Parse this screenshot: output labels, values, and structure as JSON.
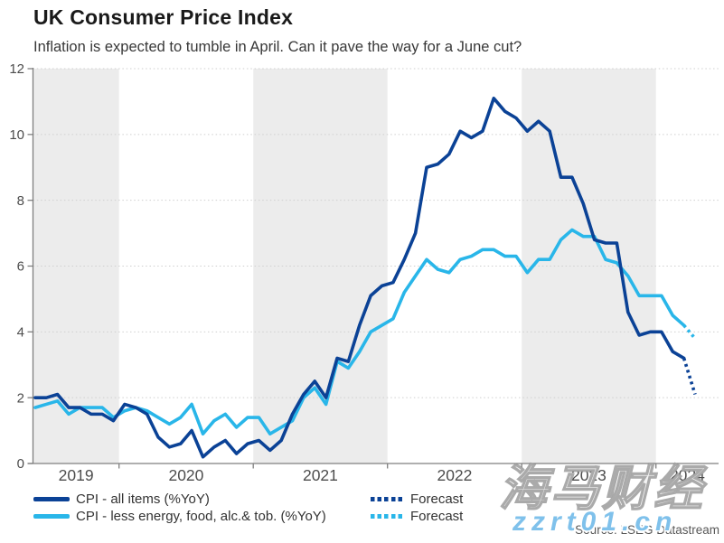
{
  "header": {
    "title": "UK Consumer Price Index",
    "subtitle": "Inflation is expected to tumble in April. Can it pave the way for a June cut?"
  },
  "legend": {
    "rows": [
      {
        "label": "CPI - all items (%YoY)",
        "forecast_label": "Forecast"
      },
      {
        "label": "CPI - less energy, food, alc.& tob. (%YoY)",
        "forecast_label": "Forecast"
      }
    ]
  },
  "footer": {
    "source": "Source: LSEG Datastream"
  },
  "watermark": {
    "brand": "海马财经",
    "site": "zzrt01.cn"
  },
  "chart_data": {
    "type": "line",
    "title": "UK Consumer Price Index",
    "xlabel": "",
    "ylabel": "",
    "ylim": [
      0,
      12
    ],
    "yticks": [
      0,
      2,
      4,
      6,
      8,
      10,
      12
    ],
    "x_year_labels": [
      "2019",
      "2020",
      "2021",
      "2022",
      "2023",
      "2024"
    ],
    "shaded_years": [
      2019,
      2021,
      2023
    ],
    "band_color": "#ececec",
    "grid": "dotted-horizontal",
    "legend_position": "bottom",
    "frequency": "monthly",
    "start_month": "2019-05",
    "series": [
      {
        "name": "CPI - all items (%YoY)",
        "color": "#0b4296",
        "style": "solid",
        "values": [
          2.0,
          2.0,
          2.1,
          1.7,
          1.7,
          1.5,
          1.5,
          1.3,
          1.8,
          1.7,
          1.5,
          0.8,
          0.5,
          0.6,
          1.0,
          0.2,
          0.5,
          0.7,
          0.3,
          0.6,
          0.7,
          0.4,
          0.7,
          1.5,
          2.1,
          2.5,
          2.0,
          3.2,
          3.1,
          4.2,
          5.1,
          5.4,
          5.5,
          6.2,
          7.0,
          9.0,
          9.1,
          9.4,
          10.1,
          9.9,
          10.1,
          11.1,
          10.7,
          10.5,
          10.1,
          10.4,
          10.1,
          8.7,
          8.7,
          7.9,
          6.8,
          6.7,
          6.7,
          4.6,
          3.9,
          4.0,
          4.0,
          3.4,
          3.2
        ]
      },
      {
        "name": "CPI - less energy, food, alc.& tob. (%YoY)",
        "color": "#29b6e9",
        "style": "solid",
        "values": [
          1.7,
          1.8,
          1.9,
          1.5,
          1.7,
          1.7,
          1.7,
          1.4,
          1.6,
          1.7,
          1.6,
          1.4,
          1.2,
          1.4,
          1.8,
          0.9,
          1.3,
          1.5,
          1.1,
          1.4,
          1.4,
          0.9,
          1.1,
          1.3,
          2.0,
          2.3,
          1.8,
          3.1,
          2.9,
          3.4,
          4.0,
          4.2,
          4.4,
          5.2,
          5.7,
          6.2,
          5.9,
          5.8,
          6.2,
          6.3,
          6.5,
          6.5,
          6.3,
          6.3,
          5.8,
          6.2,
          6.2,
          6.8,
          7.1,
          6.9,
          6.9,
          6.2,
          6.1,
          5.7,
          5.1,
          5.1,
          5.1,
          4.5,
          4.2
        ]
      }
    ],
    "forecast_series": [
      {
        "name": "Forecast",
        "color": "#0b4296",
        "style": "dotted",
        "from_index": 58,
        "values": [
          3.2,
          2.1
        ]
      },
      {
        "name": "Forecast",
        "color": "#29b6e9",
        "style": "dotted",
        "from_index": 58,
        "values": [
          4.2,
          3.8
        ]
      }
    ]
  }
}
